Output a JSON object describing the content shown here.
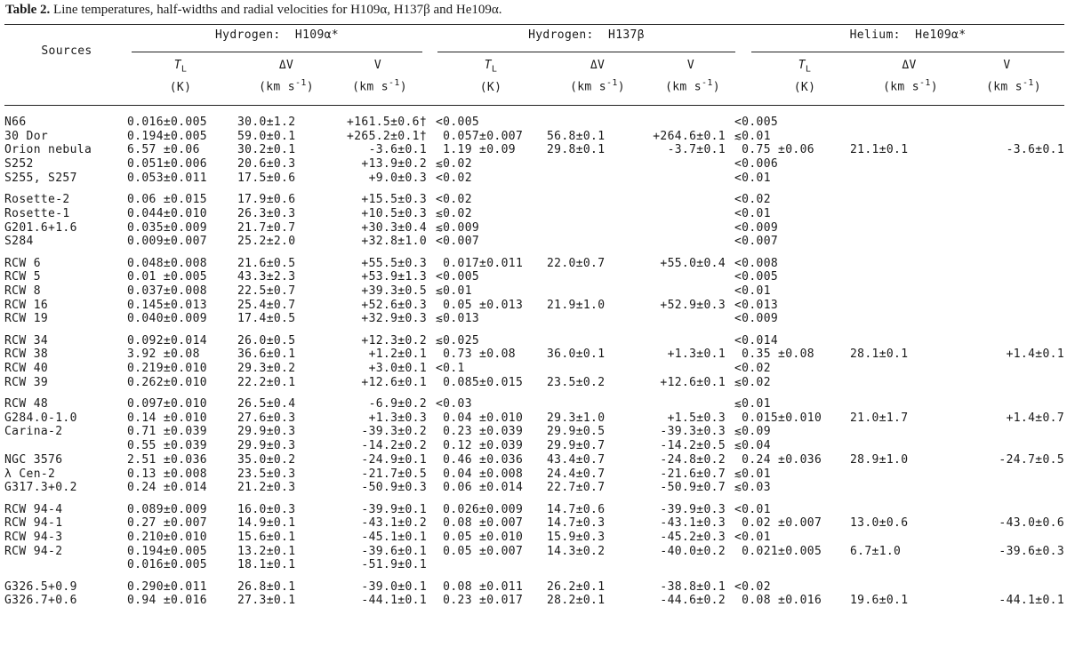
{
  "caption": {
    "label": "Table 2.",
    "text": "Line temperatures, half-widths and radial velocities for H109α, H137β and He109α."
  },
  "header": {
    "sources": "Sources",
    "groups": [
      "Hydrogen:  H109α*",
      "Hydrogen:  H137β",
      "Helium:  He109α*"
    ],
    "sym": {
      "tl": "T",
      "tl_sub": "L",
      "dv": "ΔV",
      "v": "V"
    },
    "units": {
      "k": "(K)",
      "kms_pre": "(km s",
      "kms_sup": "-1",
      "kms_post": ")"
    }
  },
  "groups": [
    [
      [
        "N66",
        "0.016±0.005",
        "30.0±1.2",
        "+161.5±0.6†",
        "<0.005",
        "",
        "",
        "<0.005",
        "",
        ""
      ],
      [
        "30 Dor",
        "0.194±0.005",
        "59.0±0.1",
        "+265.2±0.1†",
        " 0.057±0.007",
        "56.8±0.1",
        "+264.6±0.1",
        "≲0.01",
        "",
        ""
      ],
      [
        "Orion nebula",
        "6.57 ±0.06",
        "30.2±0.1",
        "-3.6±0.1",
        " 1.19 ±0.09",
        "29.8±0.1",
        "-3.7±0.1",
        " 0.75 ±0.06",
        "21.1±0.1",
        "-3.6±0.1"
      ],
      [
        "S252",
        "0.051±0.006",
        "20.6±0.3",
        "+13.9±0.2",
        "≲0.02",
        "",
        "",
        "<0.006",
        "",
        ""
      ],
      [
        "S255, S257",
        "0.053±0.011",
        "17.5±0.6",
        "+9.0±0.3",
        "<0.02",
        "",
        "",
        "<0.01",
        "",
        ""
      ]
    ],
    [
      [
        "Rosette-2",
        "0.06 ±0.015",
        "17.9±0.6",
        "+15.5±0.3",
        "<0.02",
        "",
        "",
        "<0.02",
        "",
        ""
      ],
      [
        "Rosette-1",
        "0.044±0.010",
        "26.3±0.3",
        "+10.5±0.3",
        "≲0.02",
        "",
        "",
        "<0.01",
        "",
        ""
      ],
      [
        "G201.6+1.6",
        "0.035±0.009",
        "21.7±0.7",
        "+30.3±0.4",
        "≲0.009",
        "",
        "",
        "<0.009",
        "",
        ""
      ],
      [
        "S284",
        "0.009±0.007",
        "25.2±2.0",
        "+32.8±1.0",
        "<0.007",
        "",
        "",
        "<0.007",
        "",
        ""
      ]
    ],
    [
      [
        "RCW 6",
        "0.048±0.008",
        "21.6±0.5",
        "+55.5±0.3",
        " 0.017±0.011",
        "22.0±0.7",
        "+55.0±0.4",
        "<0.008",
        "",
        ""
      ],
      [
        "RCW 5",
        "0.01 ±0.005",
        "43.3±2.3",
        "+53.9±1.3",
        "<0.005",
        "",
        "",
        "<0.005",
        "",
        ""
      ],
      [
        "RCW 8",
        "0.037±0.008",
        "22.5±0.7",
        "+39.3±0.5",
        "≲0.01",
        "",
        "",
        "<0.01",
        "",
        ""
      ],
      [
        "RCW 16",
        "0.145±0.013",
        "25.4±0.7",
        "+52.6±0.3",
        " 0.05 ±0.013",
        "21.9±1.0",
        "+52.9±0.3",
        "<0.013",
        "",
        ""
      ],
      [
        "RCW 19",
        "0.040±0.009",
        "17.4±0.5",
        "+32.9±0.3",
        "≲0.013",
        "",
        "",
        "<0.009",
        "",
        ""
      ]
    ],
    [
      [
        "RCW 34",
        "0.092±0.014",
        "26.0±0.5",
        "+12.3±0.2",
        "≲0.025",
        "",
        "",
        "<0.014",
        "",
        ""
      ],
      [
        "RCW 38",
        "3.92 ±0.08",
        "36.6±0.1",
        "+1.2±0.1",
        " 0.73 ±0.08",
        "36.0±0.1",
        "+1.3±0.1",
        " 0.35 ±0.08",
        "28.1±0.1",
        "+1.4±0.1"
      ],
      [
        "RCW 40",
        "0.219±0.010",
        "29.3±0.2",
        "+3.0±0.1",
        "<0.1",
        "",
        "",
        "<0.02",
        "",
        ""
      ],
      [
        "RCW 39",
        "0.262±0.010",
        "22.2±0.1",
        "+12.6±0.1",
        " 0.085±0.015",
        "23.5±0.2",
        "+12.6±0.1",
        "≲0.02",
        "",
        ""
      ]
    ],
    [
      [
        "RCW 48",
        "0.097±0.010",
        "26.5±0.4",
        "-6.9±0.2",
        "<0.03",
        "",
        "",
        "≲0.01",
        "",
        ""
      ],
      [
        "G284.0-1.0",
        "0.14 ±0.010",
        "27.6±0.3",
        "+1.3±0.3",
        " 0.04 ±0.010",
        "29.3±1.0",
        "+1.5±0.3",
        " 0.015±0.010",
        "21.0±1.7",
        "+1.4±0.7"
      ],
      [
        "Carina-2",
        "0.71 ±0.039",
        "29.9±0.3",
        "-39.3±0.2",
        " 0.23 ±0.039",
        "29.9±0.5",
        "-39.3±0.3",
        "≲0.09",
        "",
        ""
      ],
      [
        "",
        "0.55 ±0.039",
        "29.9±0.3",
        "-14.2±0.2",
        " 0.12 ±0.039",
        "29.9±0.7",
        "-14.2±0.5",
        "≲0.04",
        "",
        ""
      ],
      [
        "NGC 3576",
        "2.51 ±0.036",
        "35.0±0.2",
        "-24.9±0.1",
        " 0.46 ±0.036",
        "43.4±0.7",
        "-24.8±0.2",
        " 0.24 ±0.036",
        "28.9±1.0",
        "-24.7±0.5"
      ],
      [
        "λ Cen-2",
        "0.13 ±0.008",
        "23.5±0.3",
        "-21.7±0.5",
        " 0.04 ±0.008",
        "24.4±0.7",
        "-21.6±0.7",
        "≲0.01",
        "",
        ""
      ],
      [
        "G317.3+0.2",
        "0.24 ±0.014",
        "21.2±0.3",
        "-50.9±0.3",
        " 0.06 ±0.014",
        "22.7±0.7",
        "-50.9±0.7",
        "≲0.03",
        "",
        ""
      ]
    ],
    [
      [
        "RCW 94-4",
        "0.089±0.009",
        "16.0±0.3",
        "-39.9±0.1",
        " 0.026±0.009",
        "14.7±0.6",
        "-39.9±0.3",
        "<0.01",
        "",
        ""
      ],
      [
        "RCW 94-1",
        "0.27 ±0.007",
        "14.9±0.1",
        "-43.1±0.2",
        " 0.08 ±0.007",
        "14.7±0.3",
        "-43.1±0.3",
        " 0.02 ±0.007",
        "13.0±0.6",
        "-43.0±0.6"
      ],
      [
        "RCW 94-3",
        "0.210±0.010",
        "15.6±0.1",
        "-45.1±0.1",
        " 0.05 ±0.010",
        "15.9±0.3",
        "-45.2±0.3",
        "<0.01",
        "",
        ""
      ],
      [
        "RCW 94-2",
        "0.194±0.005",
        "13.2±0.1",
        "-39.6±0.1",
        " 0.05 ±0.007",
        "14.3±0.2",
        "-40.0±0.2",
        " 0.021±0.005",
        "6.7±1.0",
        "-39.6±0.3"
      ],
      [
        "",
        "0.016±0.005",
        "18.1±0.1",
        "-51.9±0.1",
        "",
        "",
        "",
        "",
        "",
        ""
      ]
    ],
    [
      [
        "G326.5+0.9",
        "0.290±0.011",
        "26.8±0.1",
        "-39.0±0.1",
        " 0.08 ±0.011",
        "26.2±0.1",
        "-38.8±0.1",
        "<0.02",
        "",
        ""
      ],
      [
        "G326.7+0.6",
        "0.94 ±0.016",
        "27.3±0.1",
        "-44.1±0.1",
        " 0.23 ±0.017",
        "28.2±0.1",
        "-44.6±0.2",
        " 0.08 ±0.016",
        "19.6±0.1",
        "-44.1±0.1"
      ]
    ]
  ]
}
